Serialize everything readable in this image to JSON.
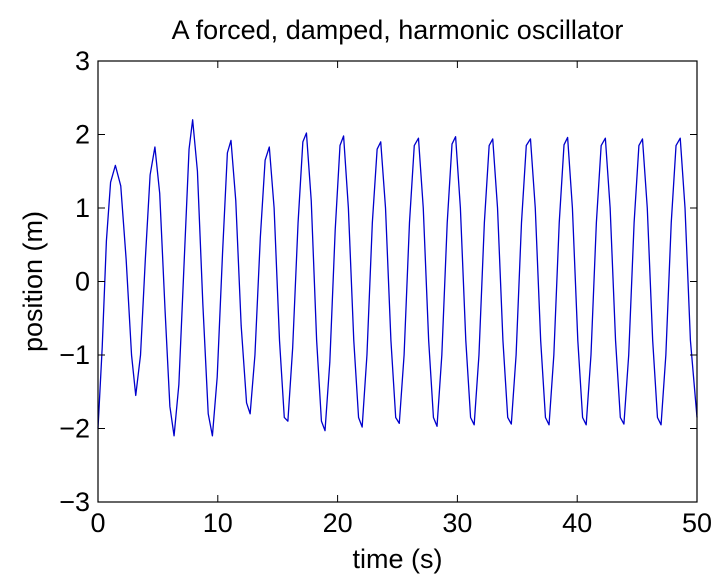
{
  "chart_data": {
    "type": "line",
    "title": "A forced, damped, harmonic oscillator",
    "xlabel": "time (s)",
    "ylabel": "position (m)",
    "xlim": [
      0,
      50
    ],
    "ylim": [
      -3,
      3
    ],
    "xticks": [
      0,
      10,
      20,
      30,
      40,
      50
    ],
    "xtick_labels": [
      "0",
      "10",
      "20",
      "30",
      "40",
      "50"
    ],
    "yticks": [
      -3,
      -2,
      -1,
      0,
      1,
      2,
      3
    ],
    "ytick_labels": [
      "−3",
      "−2",
      "−1",
      "0",
      "1",
      "2",
      "3"
    ],
    "grid": false,
    "legend": "none",
    "series": [
      {
        "color": "#0000cc",
        "points": [
          [
            0.0,
            -2.0
          ],
          [
            0.35,
            -0.9
          ],
          [
            0.7,
            0.55
          ],
          [
            1.05,
            1.35
          ],
          [
            1.45,
            1.58
          ],
          [
            1.9,
            1.3
          ],
          [
            2.35,
            0.3
          ],
          [
            2.8,
            -1.0
          ],
          [
            3.15,
            -1.55
          ],
          [
            3.55,
            -1.0
          ],
          [
            3.95,
            0.3
          ],
          [
            4.35,
            1.45
          ],
          [
            4.75,
            1.83
          ],
          [
            5.15,
            1.2
          ],
          [
            5.6,
            -0.4
          ],
          [
            6.0,
            -1.7
          ],
          [
            6.35,
            -2.1
          ],
          [
            6.75,
            -1.4
          ],
          [
            7.2,
            0.3
          ],
          [
            7.6,
            1.8
          ],
          [
            7.9,
            2.2
          ],
          [
            8.3,
            1.5
          ],
          [
            8.75,
            -0.3
          ],
          [
            9.2,
            -1.8
          ],
          [
            9.55,
            -2.1
          ],
          [
            9.95,
            -1.3
          ],
          [
            10.4,
            0.4
          ],
          [
            10.8,
            1.75
          ],
          [
            11.1,
            1.92
          ],
          [
            11.5,
            1.1
          ],
          [
            11.95,
            -0.6
          ],
          [
            12.4,
            -1.65
          ],
          [
            12.7,
            -1.8
          ],
          [
            13.1,
            -1.0
          ],
          [
            13.55,
            0.6
          ],
          [
            13.95,
            1.65
          ],
          [
            14.3,
            1.83
          ],
          [
            14.7,
            1.0
          ],
          [
            15.15,
            -0.8
          ],
          [
            15.55,
            -1.85
          ],
          [
            15.85,
            -1.9
          ],
          [
            16.25,
            -0.9
          ],
          [
            16.7,
            0.8
          ],
          [
            17.1,
            1.9
          ],
          [
            17.4,
            2.02
          ],
          [
            17.8,
            1.1
          ],
          [
            18.25,
            -0.8
          ],
          [
            18.65,
            -1.9
          ],
          [
            18.95,
            -2.03
          ],
          [
            19.35,
            -1.1
          ],
          [
            19.8,
            0.7
          ],
          [
            20.2,
            1.85
          ],
          [
            20.5,
            1.98
          ],
          [
            20.9,
            1.0
          ],
          [
            21.35,
            -0.8
          ],
          [
            21.75,
            -1.85
          ],
          [
            22.05,
            -1.98
          ],
          [
            22.45,
            -1.0
          ],
          [
            22.9,
            0.8
          ],
          [
            23.3,
            1.8
          ],
          [
            23.6,
            1.9
          ],
          [
            24.0,
            1.0
          ],
          [
            24.45,
            -0.8
          ],
          [
            24.85,
            -1.85
          ],
          [
            25.15,
            -1.93
          ],
          [
            25.55,
            -1.0
          ],
          [
            26.0,
            0.8
          ],
          [
            26.4,
            1.85
          ],
          [
            26.75,
            1.95
          ],
          [
            27.15,
            1.0
          ],
          [
            27.6,
            -0.8
          ],
          [
            28.0,
            -1.85
          ],
          [
            28.3,
            -1.97
          ],
          [
            28.7,
            -1.0
          ],
          [
            29.15,
            0.8
          ],
          [
            29.55,
            1.87
          ],
          [
            29.85,
            1.97
          ],
          [
            30.25,
            1.0
          ],
          [
            30.7,
            -0.8
          ],
          [
            31.1,
            -1.85
          ],
          [
            31.4,
            -1.95
          ],
          [
            31.8,
            -1.0
          ],
          [
            32.25,
            0.8
          ],
          [
            32.65,
            1.85
          ],
          [
            32.95,
            1.94
          ],
          [
            33.35,
            1.0
          ],
          [
            33.8,
            -0.8
          ],
          [
            34.2,
            -1.85
          ],
          [
            34.5,
            -1.94
          ],
          [
            34.9,
            -1.0
          ],
          [
            35.35,
            0.8
          ],
          [
            35.75,
            1.85
          ],
          [
            36.1,
            1.94
          ],
          [
            36.5,
            1.0
          ],
          [
            36.95,
            -0.8
          ],
          [
            37.35,
            -1.85
          ],
          [
            37.65,
            -1.95
          ],
          [
            38.05,
            -1.0
          ],
          [
            38.5,
            0.8
          ],
          [
            38.9,
            1.86
          ],
          [
            39.2,
            1.96
          ],
          [
            39.6,
            1.0
          ],
          [
            40.05,
            -0.8
          ],
          [
            40.45,
            -1.85
          ],
          [
            40.75,
            -1.95
          ],
          [
            41.15,
            -1.0
          ],
          [
            41.6,
            0.8
          ],
          [
            42.0,
            1.85
          ],
          [
            42.35,
            1.95
          ],
          [
            42.75,
            1.0
          ],
          [
            43.2,
            -0.8
          ],
          [
            43.6,
            -1.85
          ],
          [
            43.9,
            -1.94
          ],
          [
            44.3,
            -1.0
          ],
          [
            44.75,
            0.8
          ],
          [
            45.15,
            1.85
          ],
          [
            45.45,
            1.94
          ],
          [
            45.85,
            1.0
          ],
          [
            46.3,
            -0.8
          ],
          [
            46.7,
            -1.85
          ],
          [
            47.0,
            -1.95
          ],
          [
            47.4,
            -1.0
          ],
          [
            47.85,
            0.8
          ],
          [
            48.25,
            1.85
          ],
          [
            48.6,
            1.95
          ],
          [
            49.0,
            1.0
          ],
          [
            49.45,
            -0.8
          ],
          [
            50.0,
            -1.85
          ]
        ]
      }
    ]
  }
}
